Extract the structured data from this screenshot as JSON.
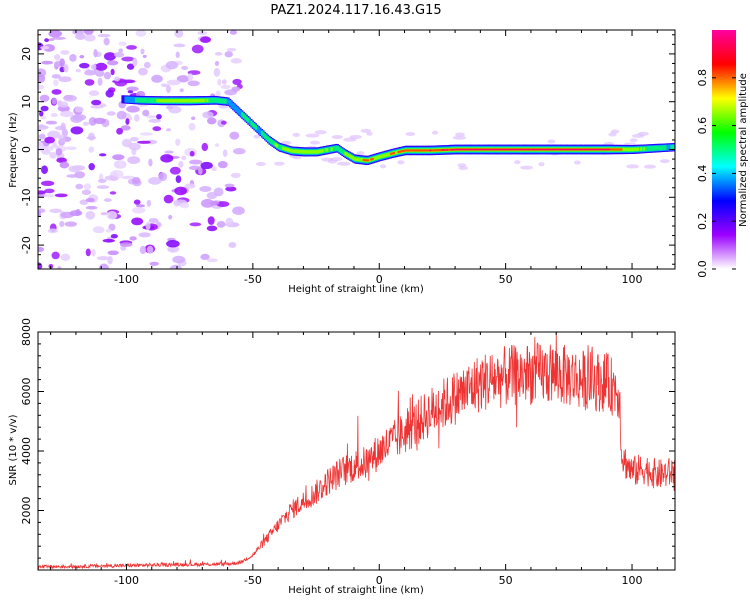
{
  "title": "PAZ1.2024.117.16.43.G15",
  "chart_data": [
    {
      "type": "heatmap",
      "name": "spectrogram",
      "xlabel": "Height of straight line (km)",
      "ylabel": "Frequency (Hz)",
      "xlim": [
        -135,
        117
      ],
      "ylim": [
        -25,
        25
      ],
      "xticks": [
        -100,
        -50,
        0,
        50,
        100
      ],
      "yticks": [
        -20,
        -10,
        0,
        10,
        20
      ],
      "colorbar": {
        "label": "Normalized spectral amplitude",
        "range": [
          0.0,
          1.0
        ],
        "ticks": [
          0.0,
          0.2,
          0.4,
          0.6,
          0.8
        ],
        "colors": [
          "#ffffff",
          "#9b00ff",
          "#0000ff",
          "#00ffff",
          "#00ff00",
          "#ffff00",
          "#ff0000",
          "#ff00a0"
        ]
      },
      "ridge": {
        "height_km": [
          -102,
          -95,
          -85,
          -75,
          -65,
          -60,
          -56,
          -52,
          -48,
          -44,
          -40,
          -35,
          -30,
          -25,
          -20,
          -17,
          -14,
          -10,
          -5,
          0,
          5,
          10,
          20,
          30,
          40,
          50,
          60,
          70,
          80,
          90,
          100,
          110,
          117
        ],
        "frequency_hz": [
          10.5,
          10.3,
          10.2,
          10.2,
          10.3,
          10.0,
          8.0,
          6.0,
          4.0,
          2.0,
          0.5,
          -0.3,
          -0.5,
          -0.5,
          0.0,
          0.3,
          -0.8,
          -2.0,
          -2.3,
          -1.5,
          -0.8,
          -0.2,
          -0.2,
          0.0,
          0.0,
          0.0,
          0.0,
          0.0,
          0.0,
          0.0,
          0.0,
          0.3,
          0.5
        ],
        "amplitude": [
          0.4,
          0.6,
          0.7,
          0.75,
          0.6,
          0.5,
          0.5,
          0.55,
          0.5,
          0.6,
          0.65,
          0.7,
          0.75,
          0.7,
          0.65,
          0.6,
          0.65,
          0.75,
          0.8,
          0.75,
          0.8,
          0.85,
          0.9,
          0.95,
          0.97,
          0.98,
          0.98,
          0.97,
          0.96,
          0.95,
          0.7,
          0.55,
          0.5
        ]
      },
      "noise_region_km": [
        -135,
        -55
      ]
    },
    {
      "type": "line",
      "name": "snr",
      "xlabel": "Height of straight line (km)",
      "ylabel": "SNR (10 * v/v)",
      "xlim": [
        -135,
        117
      ],
      "ylim": [
        0,
        8000
      ],
      "xticks": [
        -100,
        -50,
        0,
        50,
        100
      ],
      "yticks": [
        2000,
        4000,
        6000,
        8000
      ],
      "color": "#ee3333",
      "envelope": {
        "x": [
          -135,
          -100,
          -80,
          -60,
          -55,
          -50,
          -45,
          -40,
          -35,
          -30,
          -25,
          -20,
          -15,
          -10,
          -5,
          0,
          10,
          20,
          30,
          40,
          50,
          60,
          70,
          80,
          90,
          95,
          96,
          100,
          105,
          110,
          117
        ],
        "y": [
          100,
          150,
          180,
          200,
          250,
          500,
          1000,
          1500,
          2000,
          2300,
          2600,
          3000,
          3300,
          3500,
          3600,
          4000,
          4600,
          5300,
          5800,
          6300,
          6500,
          6600,
          6600,
          6400,
          6300,
          6000,
          3800,
          3300,
          3400,
          3200,
          3300
        ]
      }
    }
  ]
}
